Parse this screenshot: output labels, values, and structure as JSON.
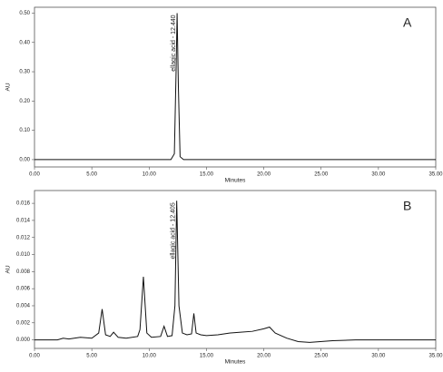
{
  "chart_data": [
    {
      "type": "line",
      "panel_label": "A",
      "x_label": "Minutes",
      "y_label": "AU",
      "annotation": "ellagic acid - 12.440",
      "xlim": [
        0,
        35
      ],
      "ylim": [
        -0.025,
        0.52
      ],
      "xticks": [
        {
          "value": 0,
          "label": "0.00"
        },
        {
          "value": 5,
          "label": "5.00"
        },
        {
          "value": 10,
          "label": "10.00"
        },
        {
          "value": 15,
          "label": "15.00"
        },
        {
          "value": 20,
          "label": "20.00"
        },
        {
          "value": 25,
          "label": "25.00"
        },
        {
          "value": 30,
          "label": "30.00"
        },
        {
          "value": 35,
          "label": "35.00"
        }
      ],
      "yticks": [
        {
          "value": 0,
          "label": "0.00"
        },
        {
          "value": 0.1,
          "label": "0.10"
        },
        {
          "value": 0.2,
          "label": "0.20"
        },
        {
          "value": 0.3,
          "label": "0.30"
        },
        {
          "value": 0.4,
          "label": "0.40"
        },
        {
          "value": 0.5,
          "label": "0.50"
        }
      ],
      "x": [
        0,
        11.9,
        12.2,
        12.35,
        12.44,
        12.55,
        12.7,
        13.0,
        35
      ],
      "series": [
        {
          "color": "#111111",
          "values": [
            0,
            0,
            0.02,
            0.3,
            0.5,
            0.25,
            0.01,
            0,
            0
          ]
        }
      ]
    },
    {
      "type": "line",
      "panel_label": "B",
      "x_label": "Minutes",
      "y_label": "AU",
      "annotation": "ellagic acid - 12.405",
      "xlim": [
        0,
        35
      ],
      "ylim": [
        -0.001,
        0.0175
      ],
      "xticks": [
        {
          "value": 0,
          "label": "0.00"
        },
        {
          "value": 5,
          "label": "5.00"
        },
        {
          "value": 10,
          "label": "10.00"
        },
        {
          "value": 15,
          "label": "15.00"
        },
        {
          "value": 20,
          "label": "20.00"
        },
        {
          "value": 25,
          "label": "25.00"
        },
        {
          "value": 30,
          "label": "30.00"
        },
        {
          "value": 35,
          "label": "35.00"
        }
      ],
      "yticks": [
        {
          "value": 0,
          "label": "0.000"
        },
        {
          "value": 0.002,
          "label": "0.002"
        },
        {
          "value": 0.004,
          "label": "0.004"
        },
        {
          "value": 0.006,
          "label": "0.006"
        },
        {
          "value": 0.008,
          "label": "0.008"
        },
        {
          "value": 0.01,
          "label": "0.010"
        },
        {
          "value": 0.012,
          "label": "0.012"
        },
        {
          "value": 0.014,
          "label": "0.014"
        },
        {
          "value": 0.016,
          "label": "0.016"
        }
      ],
      "x": [
        0,
        2,
        2.5,
        3,
        4,
        5,
        5.6,
        5.9,
        6.2,
        6.6,
        6.9,
        7.3,
        8,
        9,
        9.2,
        9.5,
        9.8,
        10.2,
        11,
        11.3,
        11.6,
        12.0,
        12.25,
        12.405,
        12.6,
        12.9,
        13.3,
        13.7,
        13.9,
        14.1,
        14.5,
        15,
        16,
        17,
        18,
        19,
        20,
        20.5,
        21,
        22,
        23,
        24,
        26,
        28,
        30,
        32,
        35
      ],
      "series": [
        {
          "color": "#111111",
          "values": [
            0,
            0,
            0.0002,
            0.0001,
            0.0003,
            0.0002,
            0.0008,
            0.0036,
            0.0006,
            0.0004,
            0.0009,
            0.0003,
            0.0002,
            0.0004,
            0.0012,
            0.0074,
            0.0008,
            0.0003,
            0.0004,
            0.0016,
            0.0004,
            0.0005,
            0.004,
            0.0163,
            0.004,
            0.0008,
            0.0006,
            0.0007,
            0.0031,
            0.0008,
            0.0006,
            0.0005,
            0.0006,
            0.0008,
            0.0009,
            0.001,
            0.0013,
            0.0015,
            0.0008,
            0.0002,
            -0.0002,
            -0.0003,
            -0.0001,
            0,
            0,
            0,
            0
          ]
        }
      ]
    }
  ]
}
